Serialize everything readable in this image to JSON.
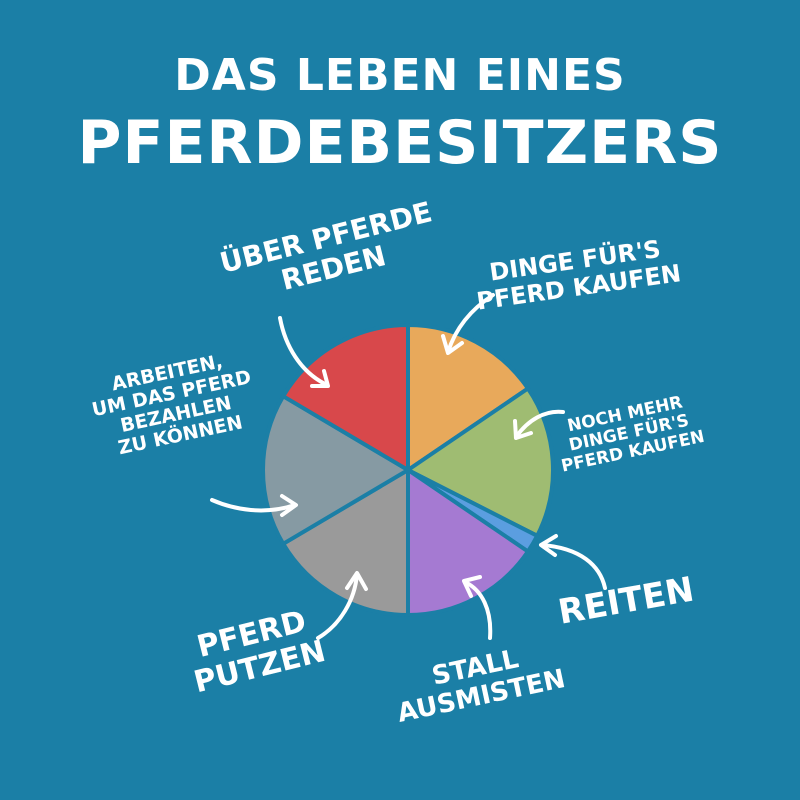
{
  "title": {
    "line1": "DAS LEBEN EINES",
    "line2": "PFERDEBESITZERS"
  },
  "colors": {
    "background": "#1b7fa6",
    "text": "#ffffff",
    "slice_border": "#1b7fa6"
  },
  "chart_data": {
    "type": "pie",
    "title": "DAS LEBEN EINES PFERDEBESITZERS",
    "slices": [
      {
        "label": "DINGE FÜR'S PFERD KAUFEN",
        "value": 15.5,
        "color": "#e8a95b"
      },
      {
        "label": "NOCH MEHR DINGE FÜR'S PFERD KAUFEN",
        "value": 17.0,
        "color": "#9fbc72"
      },
      {
        "label": "REITEN",
        "value": 2.0,
        "color": "#5b9ee0"
      },
      {
        "label": "STALL AUSMISTEN",
        "value": 15.5,
        "color": "#a57ad2"
      },
      {
        "label": "PFERD PUTZEN",
        "value": 16.5,
        "color": "#9a9a9a"
      },
      {
        "label": "ARBEITEN, UM DAS PFERD BEZAHLEN ZU KÖNNEN",
        "value": 17.0,
        "color": "#869aa3"
      },
      {
        "label": "ÜBER PFERDE REDEN",
        "value": 16.5,
        "color": "#d8484b"
      }
    ]
  }
}
